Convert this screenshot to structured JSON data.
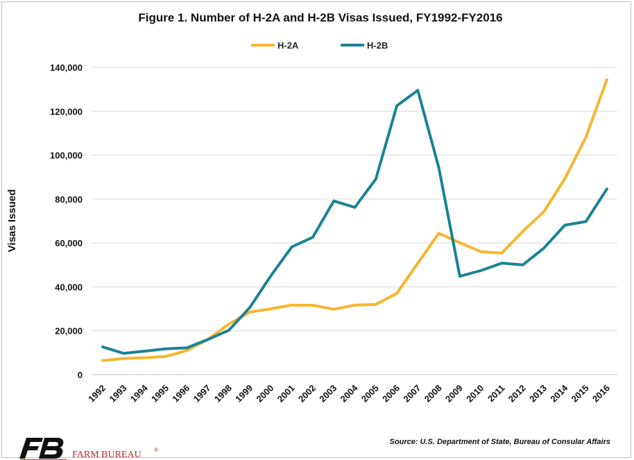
{
  "chart_data": {
    "type": "line",
    "title": "Figure 1. Number of H-2A and H-2B Visas Issued, FY1992-FY2016",
    "ylabel": "Visas Issued",
    "xlabel": "",
    "ylim": [
      0,
      140000
    ],
    "yticks": [
      "0",
      "20,000",
      "40,000",
      "60,000",
      "80,000",
      "100,000",
      "120,000",
      "140,000"
    ],
    "ytick_values": [
      0,
      20000,
      40000,
      60000,
      80000,
      100000,
      120000,
      140000
    ],
    "grid": true,
    "legend_position": "top-center",
    "x": [
      "1992",
      "1993",
      "1994",
      "1995",
      "1996",
      "1997",
      "1998",
      "1999",
      "2000",
      "2001",
      "2002",
      "2003",
      "2004",
      "2005",
      "2006",
      "2007",
      "2008",
      "2009",
      "2010",
      "2011",
      "2012",
      "2013",
      "2014",
      "2015",
      "2016"
    ],
    "series": [
      {
        "name": "H-2A",
        "color": "#f7b52c",
        "values": [
          6400,
          7400,
          7700,
          8300,
          11000,
          16000,
          23000,
          28500,
          30000,
          31700,
          31600,
          29800,
          31700,
          32000,
          37000,
          50800,
          64400,
          60100,
          56000,
          55400,
          65300,
          74200,
          89300,
          108100,
          134400
        ]
      },
      {
        "name": "H-2B",
        "color": "#1a8296",
        "values": [
          12600,
          9700,
          10700,
          11800,
          12200,
          16000,
          20200,
          30600,
          45000,
          58200,
          62600,
          79100,
          76200,
          89100,
          122500,
          129500,
          94300,
          44800,
          47400,
          50800,
          50000,
          57600,
          68100,
          69700,
          84600
        ]
      }
    ],
    "annotations": [
      "Source: U.S. Department of State, Bureau of Consular Affairs"
    ]
  },
  "brand": {
    "logo_text": "FARM BUREAU",
    "registered_mark": "®",
    "logo_color": "#c0282d",
    "logo_mark_color": "#111111",
    "logo_mark_name": "fb-logo-icon"
  }
}
